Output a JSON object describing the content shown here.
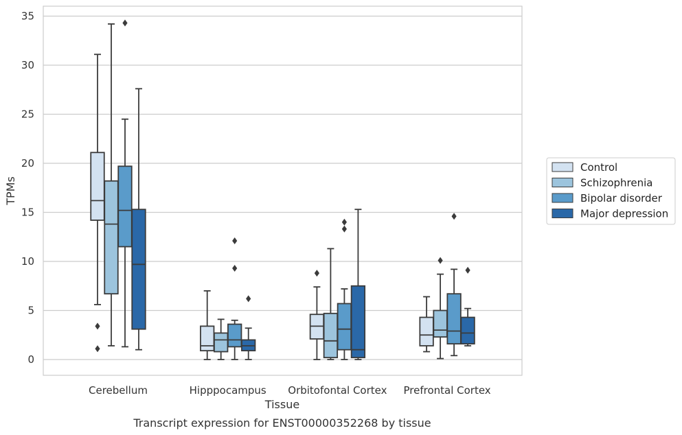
{
  "chart_data": {
    "type": "box",
    "title": "Transcript expression for ENST00000352268 by tissue",
    "xlabel": "Tissue",
    "ylabel": "TPMs",
    "ylim": [
      -1.7,
      36
    ],
    "yticks": [
      0,
      5,
      10,
      15,
      20,
      25,
      30,
      35
    ],
    "grid": "horizontal",
    "legend_position": "right",
    "categories": [
      "Cerebellum",
      "Hipppocampus",
      "Orbitofontal Cortex",
      "Prefrontal Cortex"
    ],
    "series": [
      {
        "name": "Control",
        "color": "#d3e2f1",
        "boxes": [
          {
            "whisker_low": 5.6,
            "q1": 14.2,
            "median": 16.2,
            "q3": 21.1,
            "whisker_high": 31.1,
            "outliers": [
              3.4,
              1.1
            ]
          },
          {
            "whisker_low": 0.0,
            "q1": 0.9,
            "median": 1.4,
            "q3": 3.4,
            "whisker_high": 7.0,
            "outliers": []
          },
          {
            "whisker_low": 0.0,
            "q1": 2.1,
            "median": 3.4,
            "q3": 4.6,
            "whisker_high": 7.4,
            "outliers": [
              8.8
            ]
          },
          {
            "whisker_low": 0.8,
            "q1": 1.4,
            "median": 2.5,
            "q3": 4.3,
            "whisker_high": 6.4,
            "outliers": []
          }
        ]
      },
      {
        "name": "Schizophrenia",
        "color": "#9cc4dd",
        "boxes": [
          {
            "whisker_low": 1.4,
            "q1": 6.7,
            "median": 13.8,
            "q3": 18.2,
            "whisker_high": 34.2,
            "outliers": []
          },
          {
            "whisker_low": 0.0,
            "q1": 0.8,
            "median": 2.0,
            "q3": 2.7,
            "whisker_high": 4.1,
            "outliers": []
          },
          {
            "whisker_low": 0.0,
            "q1": 0.2,
            "median": 1.9,
            "q3": 4.7,
            "whisker_high": 11.3,
            "outliers": []
          },
          {
            "whisker_low": 0.1,
            "q1": 2.3,
            "median": 3.0,
            "q3": 5.0,
            "whisker_high": 8.7,
            "outliers": [
              10.1
            ]
          }
        ]
      },
      {
        "name": "Bipolar disorder",
        "color": "#5a9bca",
        "boxes": [
          {
            "whisker_low": 1.3,
            "q1": 11.5,
            "median": 15.2,
            "q3": 19.7,
            "whisker_high": 24.5,
            "outliers": [
              34.3
            ]
          },
          {
            "whisker_low": 0.0,
            "q1": 1.3,
            "median": 2.0,
            "q3": 3.6,
            "whisker_high": 4.0,
            "outliers": [
              12.1,
              9.3
            ]
          },
          {
            "whisker_low": 0.0,
            "q1": 1.0,
            "median": 3.1,
            "q3": 5.7,
            "whisker_high": 7.2,
            "outliers": [
              14.0,
              13.3
            ]
          },
          {
            "whisker_low": 0.4,
            "q1": 1.6,
            "median": 2.9,
            "q3": 6.7,
            "whisker_high": 9.2,
            "outliers": [
              14.6
            ]
          }
        ]
      },
      {
        "name": "Major depression",
        "color": "#2a68a8",
        "boxes": [
          {
            "whisker_low": 1.0,
            "q1": 3.1,
            "median": 9.7,
            "q3": 15.3,
            "whisker_high": 27.6,
            "outliers": []
          },
          {
            "whisker_low": 0.0,
            "q1": 0.9,
            "median": 1.4,
            "q3": 2.0,
            "whisker_high": 3.2,
            "outliers": [
              6.2
            ]
          },
          {
            "whisker_low": 0.0,
            "q1": 0.2,
            "median": 1.0,
            "q3": 7.5,
            "whisker_high": 15.3,
            "outliers": []
          },
          {
            "whisker_low": 1.4,
            "q1": 1.6,
            "median": 2.7,
            "q3": 4.3,
            "whisker_high": 5.2,
            "outliers": [
              9.1
            ]
          }
        ]
      }
    ]
  }
}
